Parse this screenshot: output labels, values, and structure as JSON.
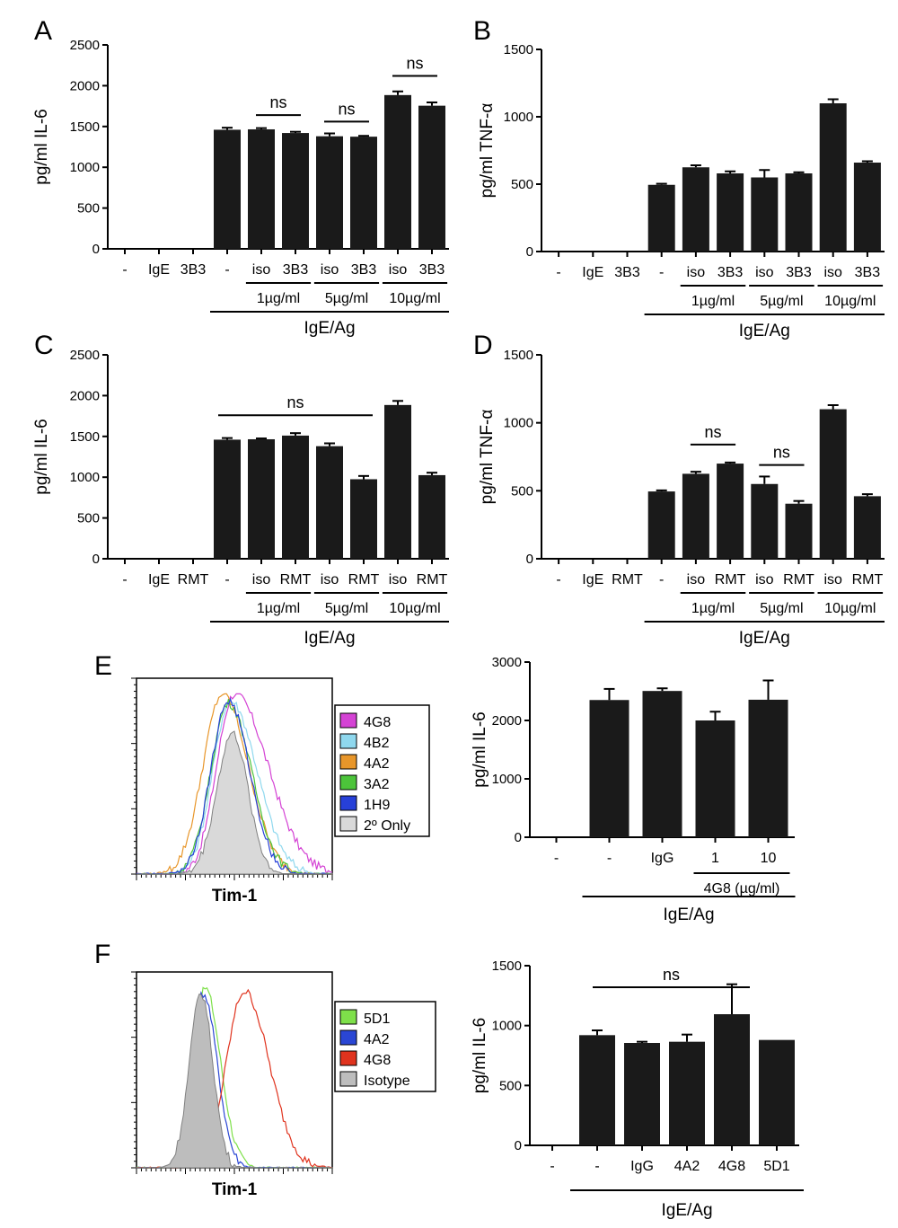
{
  "panels": {
    "A": "A",
    "B": "B",
    "C": "C",
    "D": "D",
    "E": "E",
    "F": "F"
  },
  "colors": {
    "bar": "#1a1a1a",
    "axis": "#000000",
    "secondary_fill": "#d9d9d9",
    "isotype_fill": "#bdbdbd"
  },
  "chart_data": [
    {
      "id": "A",
      "type": "bar",
      "ylabel": "pg/ml IL-6",
      "ylim": [
        0,
        2500
      ],
      "yticks": [
        "0",
        "500",
        "1000",
        "1500",
        "2000",
        "2500"
      ],
      "categories": [
        "-",
        "IgE",
        "3B3",
        "-",
        "iso",
        "3B3",
        "iso",
        "3B3",
        "iso",
        "3B3"
      ],
      "values": [
        0,
        0,
        0,
        1460,
        1465,
        1420,
        1380,
        1375,
        1885,
        1755
      ],
      "errors": [
        0,
        0,
        0,
        25,
        15,
        15,
        35,
        10,
        45,
        40
      ],
      "conc_labels": [
        "1µg/ml",
        "5µg/ml",
        "10µg/ml"
      ],
      "group_label": "IgE/Ag",
      "annotations": [
        "ns",
        "ns",
        "ns"
      ]
    },
    {
      "id": "B",
      "type": "bar",
      "ylabel": "pg/ml TNF-α",
      "ylim": [
        0,
        1500
      ],
      "yticks": [
        "0",
        "500",
        "1000",
        "1500"
      ],
      "categories": [
        "-",
        "IgE",
        "3B3",
        "-",
        "iso",
        "3B3",
        "iso",
        "3B3",
        "iso",
        "3B3"
      ],
      "values": [
        0,
        0,
        0,
        495,
        625,
        580,
        550,
        580,
        1100,
        660
      ],
      "errors": [
        0,
        0,
        0,
        8,
        15,
        15,
        55,
        8,
        30,
        10
      ],
      "conc_labels": [
        "1µg/ml",
        "5µg/ml",
        "10µg/ml"
      ],
      "group_label": "IgE/Ag"
    },
    {
      "id": "C",
      "type": "bar",
      "ylabel": "pg/ml IL-6",
      "ylim": [
        0,
        2500
      ],
      "yticks": [
        "0",
        "500",
        "1000",
        "1500",
        "2000",
        "2500"
      ],
      "categories": [
        "-",
        "IgE",
        "RMT",
        "-",
        "iso",
        "RMT",
        "iso",
        "RMT",
        "iso",
        "RMT"
      ],
      "values": [
        0,
        0,
        0,
        1460,
        1465,
        1510,
        1380,
        975,
        1885,
        1025
      ],
      "errors": [
        0,
        0,
        0,
        20,
        10,
        30,
        35,
        40,
        50,
        30
      ],
      "conc_labels": [
        "1µg/ml",
        "5µg/ml",
        "10µg/ml"
      ],
      "group_label": "IgE/Ag",
      "annotations": [
        "ns"
      ]
    },
    {
      "id": "D",
      "type": "bar",
      "ylabel": "pg/ml TNF-α",
      "ylim": [
        0,
        1500
      ],
      "yticks": [
        "0",
        "500",
        "1000",
        "1500"
      ],
      "categories": [
        "-",
        "IgE",
        "RMT",
        "-",
        "iso",
        "RMT",
        "iso",
        "RMT",
        "iso",
        "RMT"
      ],
      "values": [
        0,
        0,
        0,
        495,
        625,
        700,
        550,
        405,
        1100,
        460
      ],
      "errors": [
        0,
        0,
        0,
        8,
        15,
        8,
        55,
        20,
        30,
        15
      ],
      "conc_labels": [
        "1µg/ml",
        "5µg/ml",
        "10µg/ml"
      ],
      "group_label": "IgE/Ag",
      "annotations": [
        "ns",
        "ns"
      ]
    },
    {
      "id": "E-hist",
      "type": "histogram",
      "xlabel": "Tim-1",
      "legend": [
        "4G8",
        "4B2",
        "4A2",
        "3A2",
        "1H9",
        "2º Only"
      ],
      "series_colors": [
        "#d442d4",
        "#8fd8ee",
        "#e8962a",
        "#4cc43a",
        "#2740d8",
        "#d9d9d9"
      ]
    },
    {
      "id": "E-bar",
      "type": "bar",
      "ylabel": "pg/ml IL-6",
      "ylim": [
        0,
        3000
      ],
      "yticks": [
        "0",
        "1000",
        "2000",
        "3000"
      ],
      "categories": [
        "-",
        "-",
        "IgG",
        "1",
        "10"
      ],
      "values": [
        0,
        2350,
        2505,
        2000,
        2355
      ],
      "errors": [
        0,
        190,
        45,
        150,
        330
      ],
      "sub_label": "4G8 (µg/ml)",
      "group_label": "IgE/Ag"
    },
    {
      "id": "F-hist",
      "type": "histogram",
      "xlabel": "Tim-1",
      "legend": [
        "5D1",
        "4A2",
        "4G8",
        "Isotype"
      ],
      "series_colors": [
        "#7ee04a",
        "#2a46d4",
        "#e0331e",
        "#bdbdbd"
      ]
    },
    {
      "id": "F-bar",
      "type": "bar",
      "ylabel": "pg/ml IL-6",
      "ylim": [
        0,
        1500
      ],
      "yticks": [
        "0",
        "500",
        "1000",
        "1500"
      ],
      "categories": [
        "-",
        "-",
        "IgG",
        "4A2",
        "4G8",
        "5D1"
      ],
      "values": [
        0,
        920,
        855,
        865,
        1095,
        880
      ],
      "errors": [
        0,
        40,
        10,
        60,
        250,
        0
      ],
      "group_label": "IgE/Ag",
      "annotations": [
        "ns"
      ]
    }
  ]
}
